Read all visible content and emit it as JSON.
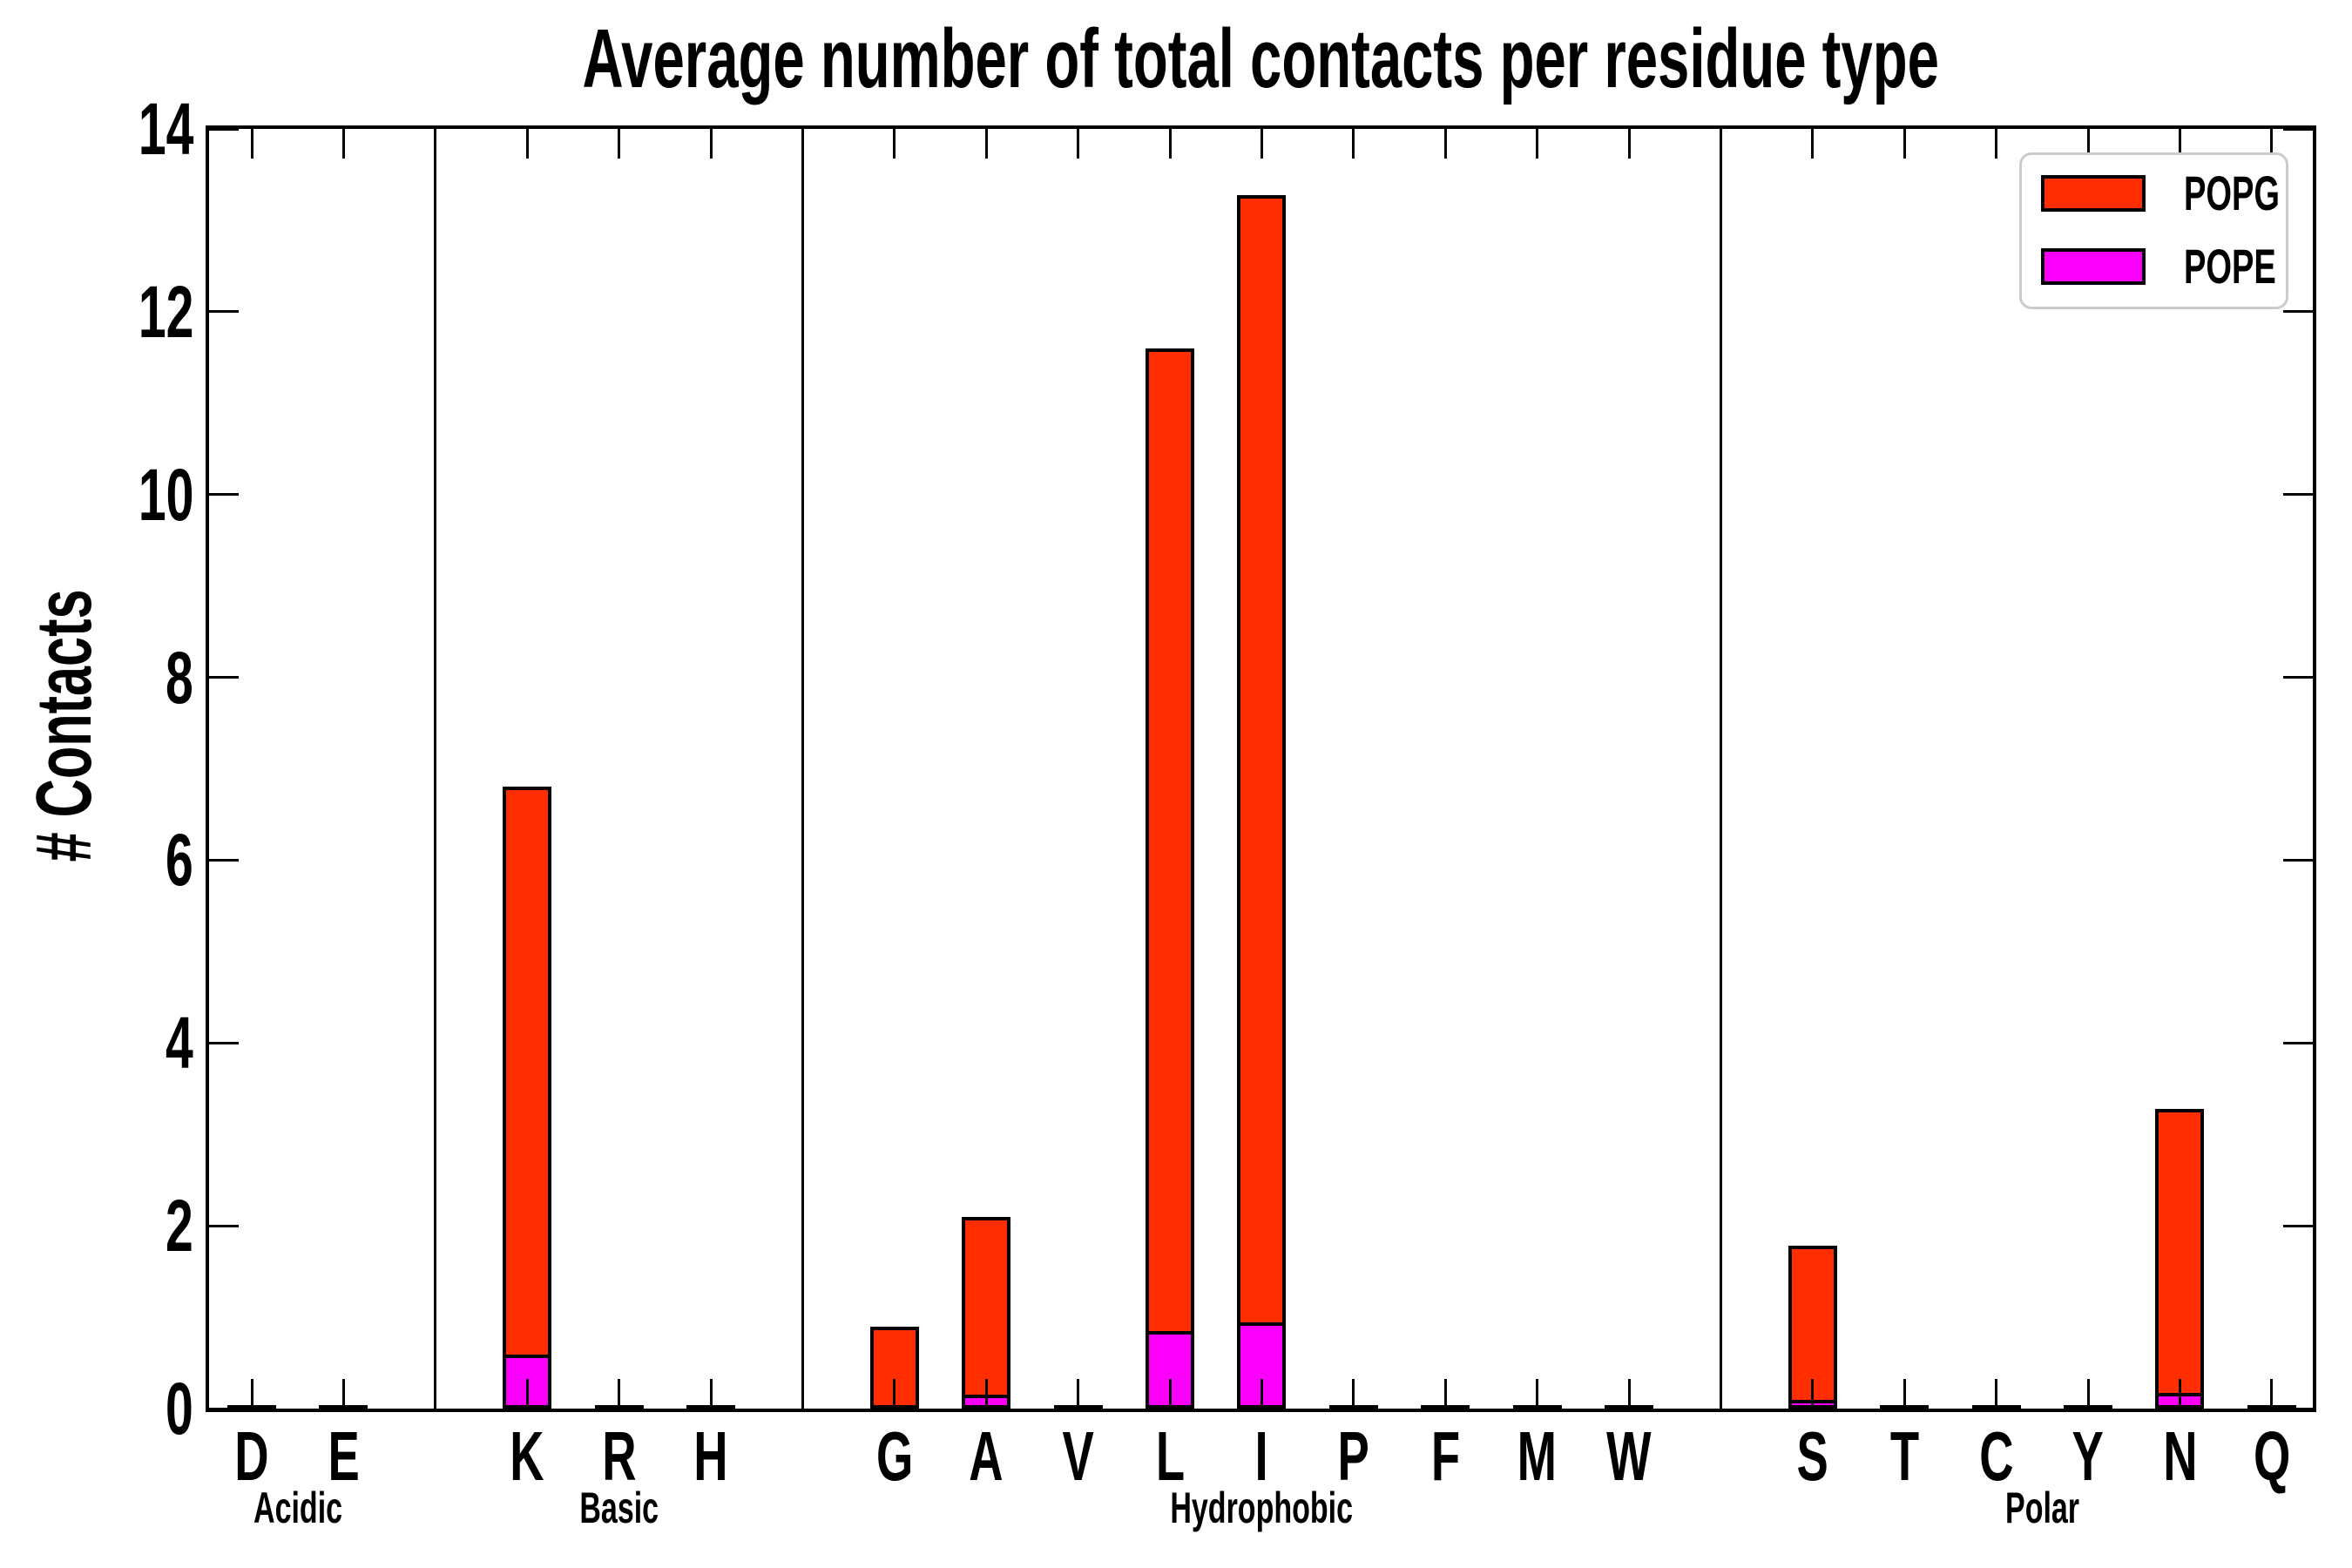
{
  "title": "Average number of total contacts per residue type",
  "y_axis": {
    "label": "# Contacts",
    "tick_labels": [
      "0",
      "2",
      "4",
      "6",
      "8",
      "10",
      "12",
      "14"
    ]
  },
  "legend": {
    "position": "upper-right",
    "items": [
      {
        "label": "POPG",
        "color": "#FF2D00"
      },
      {
        "label": "POPE",
        "color": "#FA00FA"
      }
    ]
  },
  "chart_data": {
    "type": "bar",
    "style": "overlay — POPE bars drawn from zero in front of POPG bars, black outlines",
    "title": "Average number of total contacts per residue type",
    "xlabel": "",
    "ylabel": "# Contacts",
    "ylim": [
      0,
      14
    ],
    "yticks": [
      0,
      2,
      4,
      6,
      8,
      10,
      12,
      14
    ],
    "grid": false,
    "legend_position": "upper right",
    "tick_direction": "in, all four spines",
    "groups": [
      {
        "label": "Acidic",
        "categories": [
          "D",
          "E"
        ]
      },
      {
        "label": "Basic",
        "categories": [
          "K",
          "R",
          "H"
        ]
      },
      {
        "label": "Hydrophobic",
        "categories": [
          "G",
          "A",
          "V",
          "L",
          "I",
          "P",
          "F",
          "M",
          "W"
        ]
      },
      {
        "label": "Polar",
        "categories": [
          "S",
          "T",
          "C",
          "Y",
          "N",
          "Q"
        ]
      }
    ],
    "categories": [
      "D",
      "E",
      "K",
      "R",
      "H",
      "G",
      "A",
      "V",
      "L",
      "I",
      "P",
      "F",
      "M",
      "W",
      "S",
      "T",
      "C",
      "Y",
      "N",
      "Q"
    ],
    "series": [
      {
        "name": "POPG",
        "color": "#FF2D00",
        "values": [
          0.02,
          0.02,
          6.8,
          0.02,
          0.02,
          0.9,
          2.1,
          0.02,
          11.6,
          13.28,
          0.02,
          0.02,
          0.02,
          0.02,
          1.78,
          0.02,
          0.02,
          0.02,
          3.28,
          0.02
        ]
      },
      {
        "name": "POPE",
        "color": "#FA00FA",
        "values": [
          0,
          0,
          0.59,
          0,
          0,
          0,
          0.15,
          0,
          0.85,
          0.94,
          0,
          0,
          0,
          0,
          0.1,
          0,
          0,
          0,
          0.17,
          0
        ]
      }
    ]
  }
}
